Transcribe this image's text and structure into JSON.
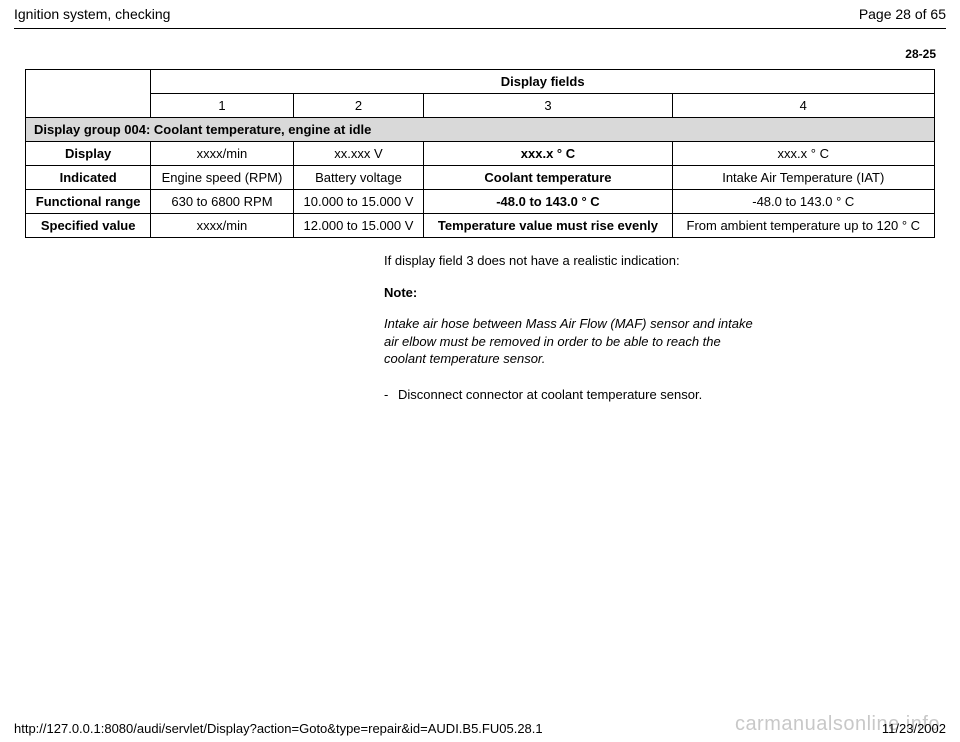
{
  "header": {
    "title": "Ignition system, checking",
    "page_of": "Page 28 of 65"
  },
  "page_num_top": "28-25",
  "table": {
    "header_span": "Display fields",
    "cols": [
      "1",
      "2",
      "3",
      "4"
    ],
    "section": "Display group 004: Coolant temperature, engine at idle",
    "rows": [
      {
        "title": "Display",
        "cells": [
          "xxxx/min",
          "xx.xxx V",
          "xxx.x  ° C",
          "xxx.x  ° C"
        ],
        "bold_idx": [
          2
        ]
      },
      {
        "title": "Indicated",
        "cells": [
          "Engine speed (RPM)",
          "Battery voltage",
          "Coolant temperature",
          "Intake Air Temperature (IAT)"
        ],
        "bold_idx": [
          2
        ]
      },
      {
        "title": "Functional range",
        "cells": [
          "630 to 6800 RPM",
          "10.000 to 15.000 V",
          "-48.0 to 143.0  ° C",
          "-48.0 to 143.0  ° C"
        ],
        "bold_idx": [
          2
        ]
      },
      {
        "title": "Specified value",
        "cells": [
          "xxxx/min",
          "12.000 to 15.000 V",
          "Temperature value must rise evenly",
          "From ambient temperature up to 120  ° C"
        ],
        "bold_idx": [
          2
        ]
      }
    ]
  },
  "body": {
    "lead": "If display field 3 does not have a realistic indication:",
    "note_label": "Note:",
    "note_text": "Intake air hose between Mass Air Flow (MAF) sensor and intake air elbow must be removed in order to be able to reach the coolant temperature sensor.",
    "step_dash": "-",
    "step_text": "Disconnect connector at coolant temperature sensor."
  },
  "footer": {
    "url": "http://127.0.0.1:8080/audi/servlet/Display?action=Goto&type=repair&id=AUDI.B5.FU05.28.1",
    "date": "11/23/2002"
  },
  "watermark": "carmanualsonline.info"
}
